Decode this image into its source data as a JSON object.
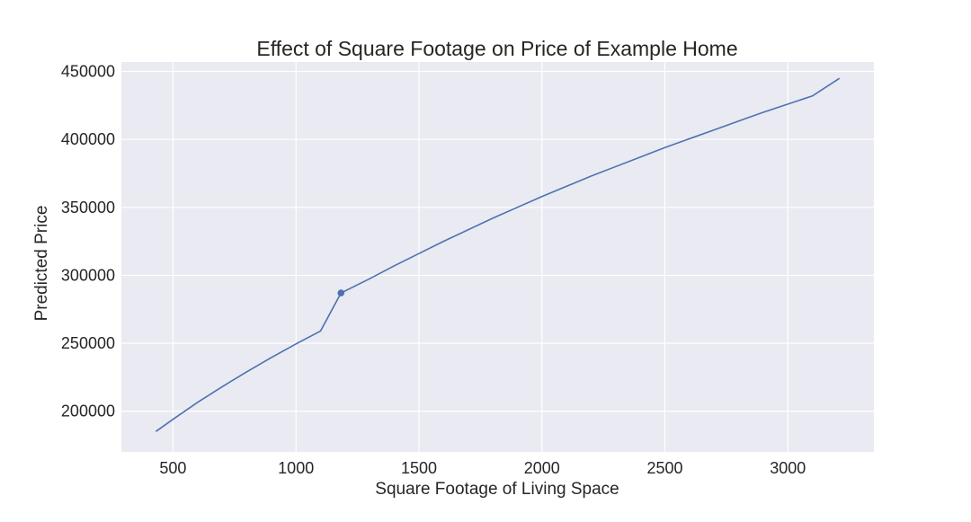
{
  "chart_data": {
    "type": "line",
    "title": "Effect of Square Footage on Price of Example Home",
    "xlabel": "Square Footage of Living Space",
    "ylabel": "Predicted Price",
    "xlim": [
      290,
      3350
    ],
    "ylim": [
      170000,
      457000
    ],
    "x_ticks": [
      500,
      1000,
      1500,
      2000,
      2500,
      3000
    ],
    "y_ticks": [
      200000,
      250000,
      300000,
      350000,
      400000,
      450000
    ],
    "grid": true,
    "series": [
      {
        "color": "#4c72b0",
        "points": [
          [
            430,
            185000
          ],
          [
            500,
            194000
          ],
          [
            600,
            206500
          ],
          [
            700,
            218000
          ],
          [
            800,
            229000
          ],
          [
            900,
            239500
          ],
          [
            1000,
            249500
          ],
          [
            1100,
            259000
          ],
          [
            1183,
            287000
          ],
          [
            1300,
            297500
          ],
          [
            1400,
            307000
          ],
          [
            1500,
            316000
          ],
          [
            1600,
            325000
          ],
          [
            1700,
            333500
          ],
          [
            1800,
            342000
          ],
          [
            1900,
            350000
          ],
          [
            2000,
            358000
          ],
          [
            2100,
            365500
          ],
          [
            2200,
            373000
          ],
          [
            2300,
            380000
          ],
          [
            2400,
            387000
          ],
          [
            2500,
            394000
          ],
          [
            2600,
            400500
          ],
          [
            2700,
            407000
          ],
          [
            2800,
            413500
          ],
          [
            2900,
            420000
          ],
          [
            3000,
            426000
          ],
          [
            3100,
            432000
          ],
          [
            3210,
            445000
          ]
        ]
      }
    ],
    "highlight_point": {
      "x": 1183,
      "y": 287000
    },
    "colors": {
      "plot_background": "#eaeaf2",
      "grid": "#ffffff",
      "line": "#4c72b0",
      "text": "#262626"
    }
  }
}
